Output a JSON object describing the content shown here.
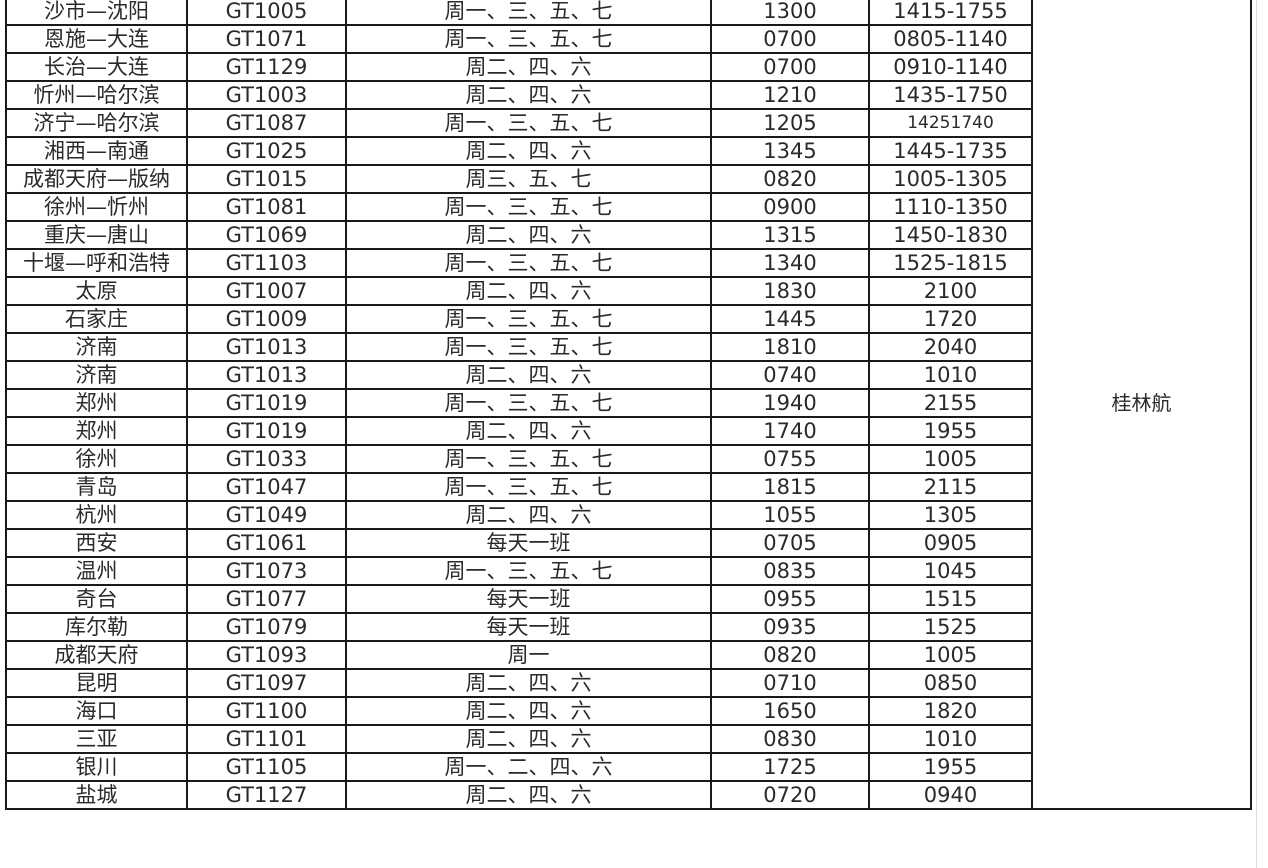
{
  "airline_label": "桂林航",
  "rows": [
    [
      "沙市—沈阳",
      "GT1005",
      "周一、三、五、七",
      "1300",
      "1415-1755"
    ],
    [
      "恩施—大连",
      "GT1071",
      "周一、三、五、七",
      "0700",
      "0805-1140"
    ],
    [
      "长治—大连",
      "GT1129",
      "周二、四、六",
      "0700",
      "0910-1140"
    ],
    [
      "忻州—哈尔滨",
      "GT1003",
      "周二、四、六",
      "1210",
      "1435-1750"
    ],
    [
      "济宁—哈尔滨",
      "GT1087",
      "周一、三、五、七",
      "1205",
      "14251740"
    ],
    [
      "湘西—南通",
      "GT1025",
      "周二、四、六",
      "1345",
      "1445-1735"
    ],
    [
      "成都天府—版纳",
      "GT1015",
      "周三、五、七",
      "0820",
      "1005-1305"
    ],
    [
      "徐州—忻州",
      "GT1081",
      "周一、三、五、七",
      "0900",
      "1110-1350"
    ],
    [
      "重庆—唐山",
      "GT1069",
      "周二、四、六",
      "1315",
      "1450-1830"
    ],
    [
      "十堰—呼和浩特",
      "GT1103",
      "周一、三、五、七",
      "1340",
      "1525-1815"
    ],
    [
      "太原",
      "GT1007",
      "周二、四、六",
      "1830",
      "2100"
    ],
    [
      "石家庄",
      "GT1009",
      "周一、三、五、七",
      "1445",
      "1720"
    ],
    [
      "济南",
      "GT1013",
      "周一、三、五、七",
      "1810",
      "2040"
    ],
    [
      "济南",
      "GT1013",
      "周二、四、六",
      "0740",
      "1010"
    ],
    [
      "郑州",
      "GT1019",
      "周一、三、五、七",
      "1940",
      "2155"
    ],
    [
      "郑州",
      "GT1019",
      "周二、四、六",
      "1740",
      "1955"
    ],
    [
      "徐州",
      "GT1033",
      "周一、三、五、七",
      "0755",
      "1005"
    ],
    [
      "青岛",
      "GT1047",
      "周一、三、五、七",
      "1815",
      "2115"
    ],
    [
      "杭州",
      "GT1049",
      "周二、四、六",
      "1055",
      "1305"
    ],
    [
      "西安",
      "GT1061",
      "每天一班",
      "0705",
      "0905"
    ],
    [
      "温州",
      "GT1073",
      "周一、三、五、七",
      "0835",
      "1045"
    ],
    [
      "奇台",
      "GT1077",
      "每天一班",
      "0955",
      "1515"
    ],
    [
      "库尔勒",
      "GT1079",
      "每天一班",
      "0935",
      "1525"
    ],
    [
      "成都天府",
      "GT1093",
      "周一",
      "0820",
      "1005"
    ],
    [
      "昆明",
      "GT1097",
      "周二、四、六",
      "0710",
      "0850"
    ],
    [
      "海口",
      "GT1100",
      "周二、四、六",
      "1650",
      "1820"
    ],
    [
      "三亚",
      "GT1101",
      "周二、四、六",
      "0830",
      "1010"
    ],
    [
      "银川",
      "GT1105",
      "周一、二、四、六",
      "1725",
      "1955"
    ],
    [
      "盐城",
      "GT1127",
      "周二、四、六",
      "0720",
      "0940"
    ]
  ]
}
